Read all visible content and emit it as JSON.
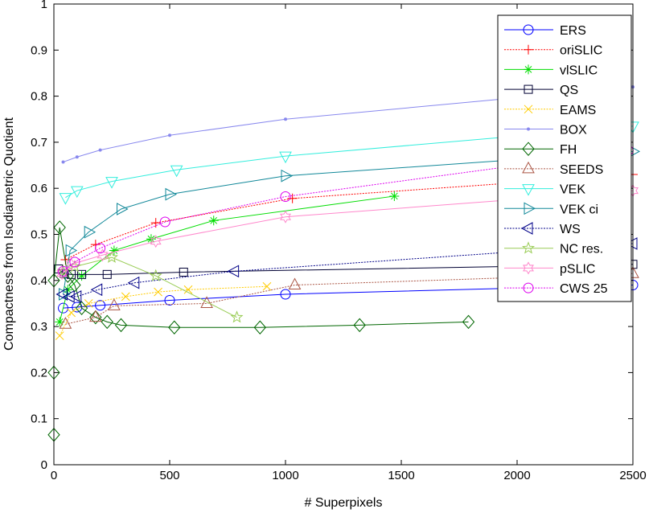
{
  "chart_data": {
    "type": "line",
    "title": "",
    "xlabel": "# Superpixels",
    "ylabel": "Compactness from Isodiametric Quotient",
    "xlim": [
      0,
      2500
    ],
    "ylim": [
      0,
      1
    ],
    "xticks": [
      0,
      500,
      1000,
      1500,
      2000,
      2500
    ],
    "yticks": [
      0,
      0.1,
      0.2,
      0.3,
      0.4,
      0.5,
      0.6,
      0.7,
      0.8,
      0.9,
      1
    ],
    "grid": false,
    "legend_position": "top-right",
    "series": [
      {
        "name": "ERS",
        "color": "#0000ff",
        "marker": "circle",
        "dash": "solid",
        "x": [
          40,
          100,
          200,
          500,
          1000,
          2500
        ],
        "y": [
          0.34,
          0.342,
          0.346,
          0.357,
          0.37,
          0.39
        ]
      },
      {
        "name": "oriSLIC",
        "color": "#ff0000",
        "marker": "plus",
        "dash": "dotted",
        "x": [
          50,
          180,
          440,
          1030,
          2500
        ],
        "y": [
          0.445,
          0.478,
          0.525,
          0.578,
          0.63
        ]
      },
      {
        "name": "vlSLIC",
        "color": "#00dd00",
        "marker": "asterisk",
        "dash": "solid",
        "x": [
          25,
          60,
          120,
          260,
          420,
          690,
          1470
        ],
        "y": [
          0.31,
          0.38,
          0.41,
          0.465,
          0.49,
          0.53,
          0.583
        ]
      },
      {
        "name": "QS",
        "color": "#000033",
        "marker": "square",
        "dash": "solid",
        "x": [
          20,
          45,
          75,
          120,
          230,
          560,
          2500
        ],
        "y": [
          0.425,
          0.415,
          0.413,
          0.413,
          0.413,
          0.418,
          0.435
        ]
      },
      {
        "name": "EAMS",
        "color": "#ffcc00",
        "marker": "x",
        "dash": "dotted",
        "x": [
          25,
          75,
          150,
          310,
          450,
          580,
          920
        ],
        "y": [
          0.28,
          0.33,
          0.35,
          0.365,
          0.375,
          0.38,
          0.387
        ]
      },
      {
        "name": "BOX",
        "color": "#8888ee",
        "marker": "dot",
        "dash": "solid",
        "x": [
          40,
          100,
          200,
          500,
          1000,
          2500
        ],
        "y": [
          0.657,
          0.668,
          0.683,
          0.715,
          0.75,
          0.82
        ]
      },
      {
        "name": "FH",
        "color": "#006600",
        "marker": "diamond",
        "dash": "solid",
        "x": [
          0,
          0,
          0,
          25,
          60,
          90,
          120,
          180,
          230,
          290,
          520,
          890,
          1320,
          1790
        ],
        "y": [
          0.065,
          0.2,
          0.4,
          0.515,
          0.41,
          0.39,
          0.34,
          0.32,
          0.31,
          0.303,
          0.298,
          0.298,
          0.303,
          0.31
        ]
      },
      {
        "name": "SEEDS",
        "color": "#aa5544",
        "marker": "triangle-up",
        "dash": "dotted",
        "x": [
          50,
          180,
          260,
          660,
          1040,
          2500
        ],
        "y": [
          0.305,
          0.32,
          0.345,
          0.35,
          0.39,
          0.415
        ]
      },
      {
        "name": "VEK",
        "color": "#33eedd",
        "marker": "triangle-down",
        "dash": "solid",
        "x": [
          50,
          100,
          250,
          530,
          1000,
          2500
        ],
        "y": [
          0.58,
          0.595,
          0.615,
          0.64,
          0.67,
          0.735
        ]
      },
      {
        "name": "VEK ci",
        "color": "#118899",
        "marker": "triangle-right",
        "dash": "solid",
        "x": [
          40,
          70,
          150,
          290,
          500,
          1000,
          2500
        ],
        "y": [
          0.37,
          0.465,
          0.505,
          0.555,
          0.587,
          0.627,
          0.68
        ]
      },
      {
        "name": "WS",
        "color": "#000088",
        "marker": "triangle-left",
        "dash": "dotted",
        "x": [
          40,
          70,
          100,
          190,
          350,
          780,
          2500
        ],
        "y": [
          0.37,
          0.365,
          0.365,
          0.38,
          0.395,
          0.42,
          0.48
        ]
      },
      {
        "name": "NC res.",
        "color": "#99cc55",
        "marker": "star",
        "dash": "solid",
        "x": [
          40,
          90,
          250,
          440,
          790
        ],
        "y": [
          0.42,
          0.43,
          0.45,
          0.41,
          0.32
        ]
      },
      {
        "name": "pSLIC",
        "color": "#ff88cc",
        "marker": "hexagram",
        "dash": "solid",
        "x": [
          35,
          75,
          210,
          440,
          1000,
          2500
        ],
        "y": [
          0.415,
          0.435,
          0.455,
          0.485,
          0.538,
          0.595
        ]
      },
      {
        "name": "CWS 25",
        "color": "#dd00ee",
        "marker": "circle",
        "dash": "dotted",
        "x": [
          40,
          90,
          200,
          480,
          1000,
          2480
        ],
        "y": [
          0.42,
          0.44,
          0.47,
          0.527,
          0.582,
          0.682
        ]
      }
    ]
  }
}
